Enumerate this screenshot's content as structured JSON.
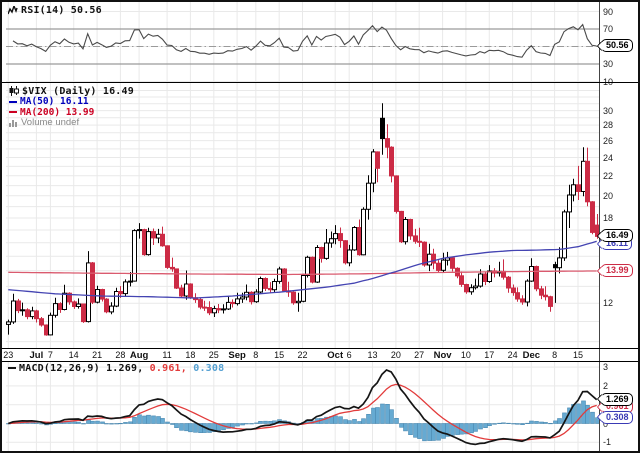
{
  "rsi": {
    "label": "RSI(14) 50.56",
    "badge": "50.56",
    "axis": [
      90,
      70,
      50,
      30,
      10
    ],
    "overbought": 70,
    "oversold": 30,
    "midline": 50
  },
  "main": {
    "title": "$VIX (Daily) 16.49",
    "ma50_label": "MA(50) 16.11",
    "ma200_label": "MA(200) 13.99",
    "volume_label": "Volume undef",
    "close_badge": "16.49",
    "ma50_badge": "16.11",
    "ma200_badge": "13.99",
    "axis": [
      30,
      28,
      26,
      24,
      22,
      20,
      18,
      16,
      14,
      12
    ]
  },
  "macd": {
    "label_main": "MACD(12,26,9) 1.269,",
    "label_signal": "0.961,",
    "label_hist": "0.308",
    "badge_macd": "1.269",
    "badge_signal": "0.961",
    "badge_hist": "0.308",
    "axis": [
      3,
      2,
      1,
      0,
      -1
    ]
  },
  "colors": {
    "up_fill": "#ffffff",
    "up_stroke": "#000000",
    "down": "#cc2b45",
    "ma50_line": "#4444b2",
    "ma200_line": "#da5a6e",
    "rsi_line": "#4a4a4a",
    "macd_line": "#151515",
    "signal_line": "#e23b3b",
    "hist_fill": "#66aad2",
    "hist_stroke": "#4c8ab2",
    "grid": "#e9e9e9",
    "strong_grid": "#9a9a9a"
  },
  "x_ticks": [
    [
      0,
      "23",
      0
    ],
    [
      6,
      "Jul",
      1
    ],
    [
      9,
      "7",
      0
    ],
    [
      14,
      "14",
      0
    ],
    [
      19,
      "21",
      0
    ],
    [
      24,
      "28",
      0
    ],
    [
      28,
      "Aug",
      1
    ],
    [
      34,
      "11",
      0
    ],
    [
      39,
      "18",
      0
    ],
    [
      44,
      "25",
      0
    ],
    [
      49,
      "Sep",
      1
    ],
    [
      53,
      "8",
      0
    ],
    [
      58,
      "15",
      0
    ],
    [
      63,
      "22",
      0
    ],
    [
      70,
      "Oct",
      1
    ],
    [
      73,
      "6",
      0
    ],
    [
      78,
      "13",
      0
    ],
    [
      83,
      "20",
      0
    ],
    [
      88,
      "27",
      0
    ],
    [
      93,
      "Nov",
      1
    ],
    [
      98,
      "10",
      0
    ],
    [
      103,
      "17",
      0
    ],
    [
      108,
      "24",
      0
    ],
    [
      112,
      "Dec",
      1
    ],
    [
      117,
      "8",
      0
    ],
    [
      122,
      "15",
      0
    ]
  ],
  "chart_data": {
    "type": "candlestick",
    "symbol": "$VIX",
    "timeframe": "Daily",
    "scale": "log",
    "ylim": [
      9.7,
      34.2
    ],
    "indicators": [
      "RSI(14)",
      "MA(50)",
      "MA(200)",
      "MACD(12,26,9)"
    ],
    "last": {
      "close": 16.49,
      "ma50": 16.11,
      "ma200": 13.99,
      "rsi": 50.56,
      "macd": 1.269,
      "signal": 0.961,
      "hist": 0.308
    },
    "candles": [
      [
        "6/23",
        10.85,
        11.1,
        10.34,
        10.98
      ],
      [
        "6/24",
        10.98,
        12.56,
        10.88,
        12.13
      ],
      [
        "6/25",
        12.13,
        12.25,
        11.45,
        11.59
      ],
      [
        "6/26",
        11.59,
        12.04,
        11.31,
        11.63
      ],
      [
        "6/27",
        11.63,
        11.72,
        11.12,
        11.26
      ],
      [
        "6/30",
        11.26,
        11.8,
        11.12,
        11.57
      ],
      [
        "7/1",
        11.57,
        11.63,
        10.95,
        11.15
      ],
      [
        "7/2",
        11.15,
        11.24,
        10.74,
        10.82
      ],
      [
        "7/3",
        10.82,
        10.85,
        10.28,
        10.32
      ],
      [
        "7/7",
        10.32,
        11.48,
        10.3,
        11.33
      ],
      [
        "7/8",
        11.33,
        12.32,
        11.21,
        11.98
      ],
      [
        "7/9",
        11.98,
        12.06,
        11.46,
        11.65
      ],
      [
        "7/10",
        11.65,
        13.1,
        11.6,
        12.59
      ],
      [
        "7/11",
        12.59,
        12.65,
        11.91,
        12.08
      ],
      [
        "7/14",
        12.08,
        12.16,
        11.68,
        11.82
      ],
      [
        "7/15",
        11.82,
        12.28,
        11.7,
        11.96
      ],
      [
        "7/16",
        11.96,
        11.98,
        10.93,
        11.0
      ],
      [
        "7/17",
        11.0,
        15.38,
        10.95,
        14.54
      ],
      [
        "7/18",
        14.54,
        14.6,
        11.96,
        12.06
      ],
      [
        "7/21",
        12.06,
        13.04,
        11.99,
        12.81
      ],
      [
        "7/22",
        12.81,
        12.86,
        12.1,
        12.24
      ],
      [
        "7/23",
        12.24,
        12.3,
        11.44,
        11.52
      ],
      [
        "7/24",
        11.52,
        12.06,
        11.39,
        11.84
      ],
      [
        "7/25",
        11.84,
        12.92,
        11.78,
        12.69
      ],
      [
        "7/28",
        12.69,
        13.02,
        12.31,
        12.56
      ],
      [
        "7/29",
        12.56,
        13.44,
        12.42,
        13.28
      ],
      [
        "7/30",
        13.28,
        13.92,
        13.0,
        13.33
      ],
      [
        "7/31",
        13.33,
        17.06,
        13.3,
        16.95
      ],
      [
        "8/1",
        16.95,
        17.57,
        16.32,
        17.03
      ],
      [
        "8/4",
        17.03,
        17.1,
        15.04,
        15.12
      ],
      [
        "8/5",
        15.12,
        17.19,
        15.05,
        16.87
      ],
      [
        "8/6",
        16.87,
        17.12,
        15.83,
        16.37
      ],
      [
        "8/7",
        16.37,
        17.09,
        15.97,
        16.66
      ],
      [
        "8/8",
        16.66,
        17.28,
        15.7,
        15.77
      ],
      [
        "8/11",
        15.77,
        15.8,
        14.13,
        14.23
      ],
      [
        "8/12",
        14.23,
        14.91,
        13.94,
        14.13
      ],
      [
        "8/13",
        14.13,
        14.15,
        12.84,
        12.9
      ],
      [
        "8/14",
        12.9,
        13.1,
        12.31,
        12.42
      ],
      [
        "8/15",
        12.42,
        14.02,
        12.2,
        13.15
      ],
      [
        "8/18",
        13.15,
        13.2,
        12.25,
        12.32
      ],
      [
        "8/19",
        12.32,
        12.59,
        12.02,
        12.21
      ],
      [
        "8/20",
        12.21,
        12.29,
        11.66,
        11.78
      ],
      [
        "8/21",
        11.78,
        12.14,
        11.57,
        11.76
      ],
      [
        "8/22",
        11.76,
        12.11,
        11.34,
        11.47
      ],
      [
        "8/25",
        11.47,
        11.86,
        11.24,
        11.7
      ],
      [
        "8/26",
        11.7,
        11.96,
        11.45,
        11.63
      ],
      [
        "8/27",
        11.63,
        11.94,
        11.43,
        11.68
      ],
      [
        "8/28",
        11.68,
        12.41,
        11.62,
        12.05
      ],
      [
        "8/29",
        12.05,
        12.22,
        11.76,
        11.98
      ],
      [
        "9/2",
        11.98,
        12.62,
        11.87,
        12.25
      ],
      [
        "9/3",
        12.25,
        12.61,
        12.02,
        12.36
      ],
      [
        "9/4",
        12.36,
        13.12,
        12.17,
        12.64
      ],
      [
        "9/5",
        12.64,
        12.7,
        11.93,
        12.09
      ],
      [
        "9/8",
        12.09,
        12.83,
        12.02,
        12.66
      ],
      [
        "9/9",
        12.66,
        13.62,
        12.54,
        13.5
      ],
      [
        "9/10",
        13.5,
        13.57,
        12.72,
        12.88
      ],
      [
        "9/11",
        12.88,
        13.27,
        12.61,
        12.8
      ],
      [
        "9/12",
        12.8,
        13.48,
        12.66,
        13.31
      ],
      [
        "9/15",
        13.31,
        14.28,
        13.16,
        14.12
      ],
      [
        "9/16",
        14.12,
        14.18,
        12.66,
        12.73
      ],
      [
        "9/17",
        12.73,
        13.29,
        12.37,
        12.65
      ],
      [
        "9/18",
        12.65,
        12.71,
        11.91,
        12.03
      ],
      [
        "9/19",
        12.03,
        12.62,
        11.52,
        12.11
      ],
      [
        "9/22",
        12.11,
        13.81,
        12.06,
        13.69
      ],
      [
        "9/23",
        13.69,
        15.04,
        13.56,
        14.93
      ],
      [
        "9/24",
        14.93,
        14.99,
        13.19,
        13.27
      ],
      [
        "9/25",
        13.27,
        15.82,
        13.22,
        15.64
      ],
      [
        "9/26",
        15.64,
        15.7,
        14.56,
        14.85
      ],
      [
        "9/29",
        14.85,
        17.08,
        14.76,
        15.98
      ],
      [
        "9/30",
        15.98,
        16.88,
        15.62,
        16.31
      ],
      [
        "10/1",
        16.31,
        17.4,
        15.89,
        16.71
      ],
      [
        "10/2",
        16.71,
        17.2,
        15.63,
        16.16
      ],
      [
        "10/3",
        16.16,
        16.2,
        14.43,
        14.55
      ],
      [
        "10/6",
        14.55,
        15.84,
        14.31,
        15.46
      ],
      [
        "10/7",
        15.46,
        17.32,
        15.39,
        17.2
      ],
      [
        "10/8",
        17.2,
        17.87,
        15.04,
        15.11
      ],
      [
        "10/9",
        15.11,
        18.94,
        15.07,
        18.76
      ],
      [
        "10/10",
        18.76,
        22.06,
        17.86,
        21.24
      ],
      [
        "10/13",
        21.24,
        24.98,
        20.34,
        24.64
      ],
      [
        "10/14",
        24.64,
        24.7,
        21.34,
        22.79
      ],
      [
        "10/15",
        28.91,
        31.06,
        24.31,
        26.25
      ],
      [
        "10/16",
        26.25,
        28.1,
        23.91,
        25.2
      ],
      [
        "10/17",
        25.2,
        25.31,
        21.32,
        21.99
      ],
      [
        "10/20",
        21.99,
        22.04,
        18.39,
        18.57
      ],
      [
        "10/21",
        18.57,
        18.62,
        15.98,
        16.08
      ],
      [
        "10/22",
        16.08,
        18.08,
        15.87,
        17.87
      ],
      [
        "10/23",
        17.87,
        17.93,
        16.22,
        16.53
      ],
      [
        "10/24",
        16.53,
        17.09,
        15.92,
        16.11
      ],
      [
        "10/27",
        16.11,
        17.19,
        15.68,
        16.04
      ],
      [
        "10/28",
        16.04,
        16.1,
        14.28,
        14.39
      ],
      [
        "10/29",
        14.39,
        15.92,
        13.98,
        15.15
      ],
      [
        "10/30",
        15.15,
        15.55,
        14.11,
        14.52
      ],
      [
        "10/31",
        14.52,
        14.73,
        13.87,
        14.03
      ],
      [
        "11/3",
        14.03,
        15.26,
        13.91,
        14.73
      ],
      [
        "11/4",
        14.73,
        15.32,
        14.36,
        14.89
      ],
      [
        "11/5",
        14.89,
        14.95,
        13.96,
        14.17
      ],
      [
        "11/6",
        14.17,
        14.24,
        13.51,
        13.67
      ],
      [
        "11/7",
        13.67,
        13.96,
        12.97,
        13.12
      ],
      [
        "11/10",
        13.12,
        13.16,
        12.56,
        12.67
      ],
      [
        "11/11",
        12.67,
        13.14,
        12.49,
        12.92
      ],
      [
        "11/12",
        12.92,
        13.49,
        12.81,
        13.02
      ],
      [
        "11/13",
        13.02,
        14.1,
        12.93,
        13.79
      ],
      [
        "11/14",
        13.79,
        13.89,
        13.08,
        13.31
      ],
      [
        "11/17",
        13.31,
        14.39,
        13.22,
        13.99
      ],
      [
        "11/18",
        13.99,
        14.18,
        13.57,
        13.86
      ],
      [
        "11/19",
        13.86,
        14.62,
        13.63,
        13.96
      ],
      [
        "11/20",
        13.96,
        14.78,
        13.43,
        13.58
      ],
      [
        "11/21",
        13.58,
        13.66,
        12.62,
        12.9
      ],
      [
        "11/24",
        12.9,
        13.12,
        12.43,
        12.62
      ],
      [
        "11/25",
        12.62,
        12.94,
        12.09,
        12.25
      ],
      [
        "11/26",
        12.25,
        12.46,
        11.91,
        12.07
      ],
      [
        "11/28",
        12.07,
        13.45,
        11.82,
        13.33
      ],
      [
        "12/1",
        13.33,
        14.87,
        13.28,
        14.29
      ],
      [
        "12/2",
        14.29,
        14.35,
        12.7,
        12.85
      ],
      [
        "12/3",
        12.85,
        13.03,
        12.24,
        12.47
      ],
      [
        "12/4",
        12.47,
        13.01,
        12.16,
        12.38
      ],
      [
        "12/5",
        12.38,
        12.44,
        11.53,
        11.82
      ],
      [
        "12/8",
        14.42,
        14.62,
        12.02,
        14.21
      ],
      [
        "12/9",
        14.21,
        15.66,
        13.83,
        14.89
      ],
      [
        "12/10",
        14.89,
        18.72,
        14.68,
        18.53
      ],
      [
        "12/11",
        18.53,
        21.08,
        17.16,
        20.08
      ],
      [
        "12/12",
        20.08,
        21.69,
        19.48,
        21.08
      ],
      [
        "12/15",
        21.08,
        23.06,
        19.61,
        20.42
      ],
      [
        "12/16",
        20.42,
        25.2,
        19.96,
        23.57
      ],
      [
        "12/17",
        23.57,
        25.16,
        19.04,
        19.44
      ],
      [
        "12/18",
        19.44,
        19.5,
        16.66,
        16.81
      ],
      [
        "12/19",
        17.4,
        18.34,
        16.3,
        16.49
      ]
    ],
    "ma50_points": [
      [
        0,
        12.8
      ],
      [
        10,
        12.55
      ],
      [
        20,
        12.42
      ],
      [
        30,
        12.38
      ],
      [
        40,
        12.3
      ],
      [
        48,
        12.42
      ],
      [
        58,
        12.65
      ],
      [
        68,
        12.95
      ],
      [
        74,
        13.2
      ],
      [
        78,
        13.5
      ],
      [
        83,
        13.95
      ],
      [
        88,
        14.45
      ],
      [
        93,
        14.85
      ],
      [
        98,
        15.1
      ],
      [
        103,
        15.3
      ],
      [
        108,
        15.42
      ],
      [
        113,
        15.45
      ],
      [
        118,
        15.5
      ],
      [
        122,
        15.7
      ],
      [
        126,
        16.11
      ]
    ],
    "ma200_points": [
      [
        0,
        13.9
      ],
      [
        20,
        13.84
      ],
      [
        40,
        13.79
      ],
      [
        60,
        13.76
      ],
      [
        75,
        13.8
      ],
      [
        90,
        13.88
      ],
      [
        105,
        13.94
      ],
      [
        115,
        13.97
      ],
      [
        126,
        13.99
      ]
    ]
  }
}
